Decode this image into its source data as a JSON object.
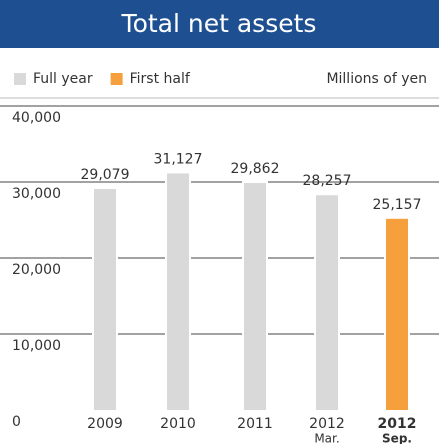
{
  "chart_data": {
    "type": "bar",
    "title": "Total net assets",
    "unit_label": "Millions of yen",
    "categories": [
      "2009",
      "2010",
      "2011",
      "2012",
      "2012"
    ],
    "category_sublabels": [
      null,
      null,
      null,
      "Mar.",
      "Sep."
    ],
    "series": [
      {
        "name": "Full year",
        "color": "#d9d9d9",
        "values": [
          29079,
          31127,
          29862,
          28257,
          null
        ],
        "value_labels": [
          "29,079",
          "31,127",
          "29,862",
          "28,257",
          null
        ]
      },
      {
        "name": "First half",
        "color": "#f5a03c",
        "values": [
          null,
          null,
          null,
          null,
          25157
        ],
        "value_labels": [
          null,
          null,
          null,
          null,
          "25,157"
        ]
      }
    ],
    "ylim": [
      0,
      40000
    ],
    "yticks": [
      0,
      {
        "value": 10000,
        "label": "10,000"
      },
      {
        "value": 20000,
        "label": "20,000"
      },
      {
        "value": 30000,
        "label": "30,000"
      },
      {
        "value": 40000,
        "label": "40,000"
      }
    ],
    "grid": true,
    "title_color": "#1d4f91"
  }
}
